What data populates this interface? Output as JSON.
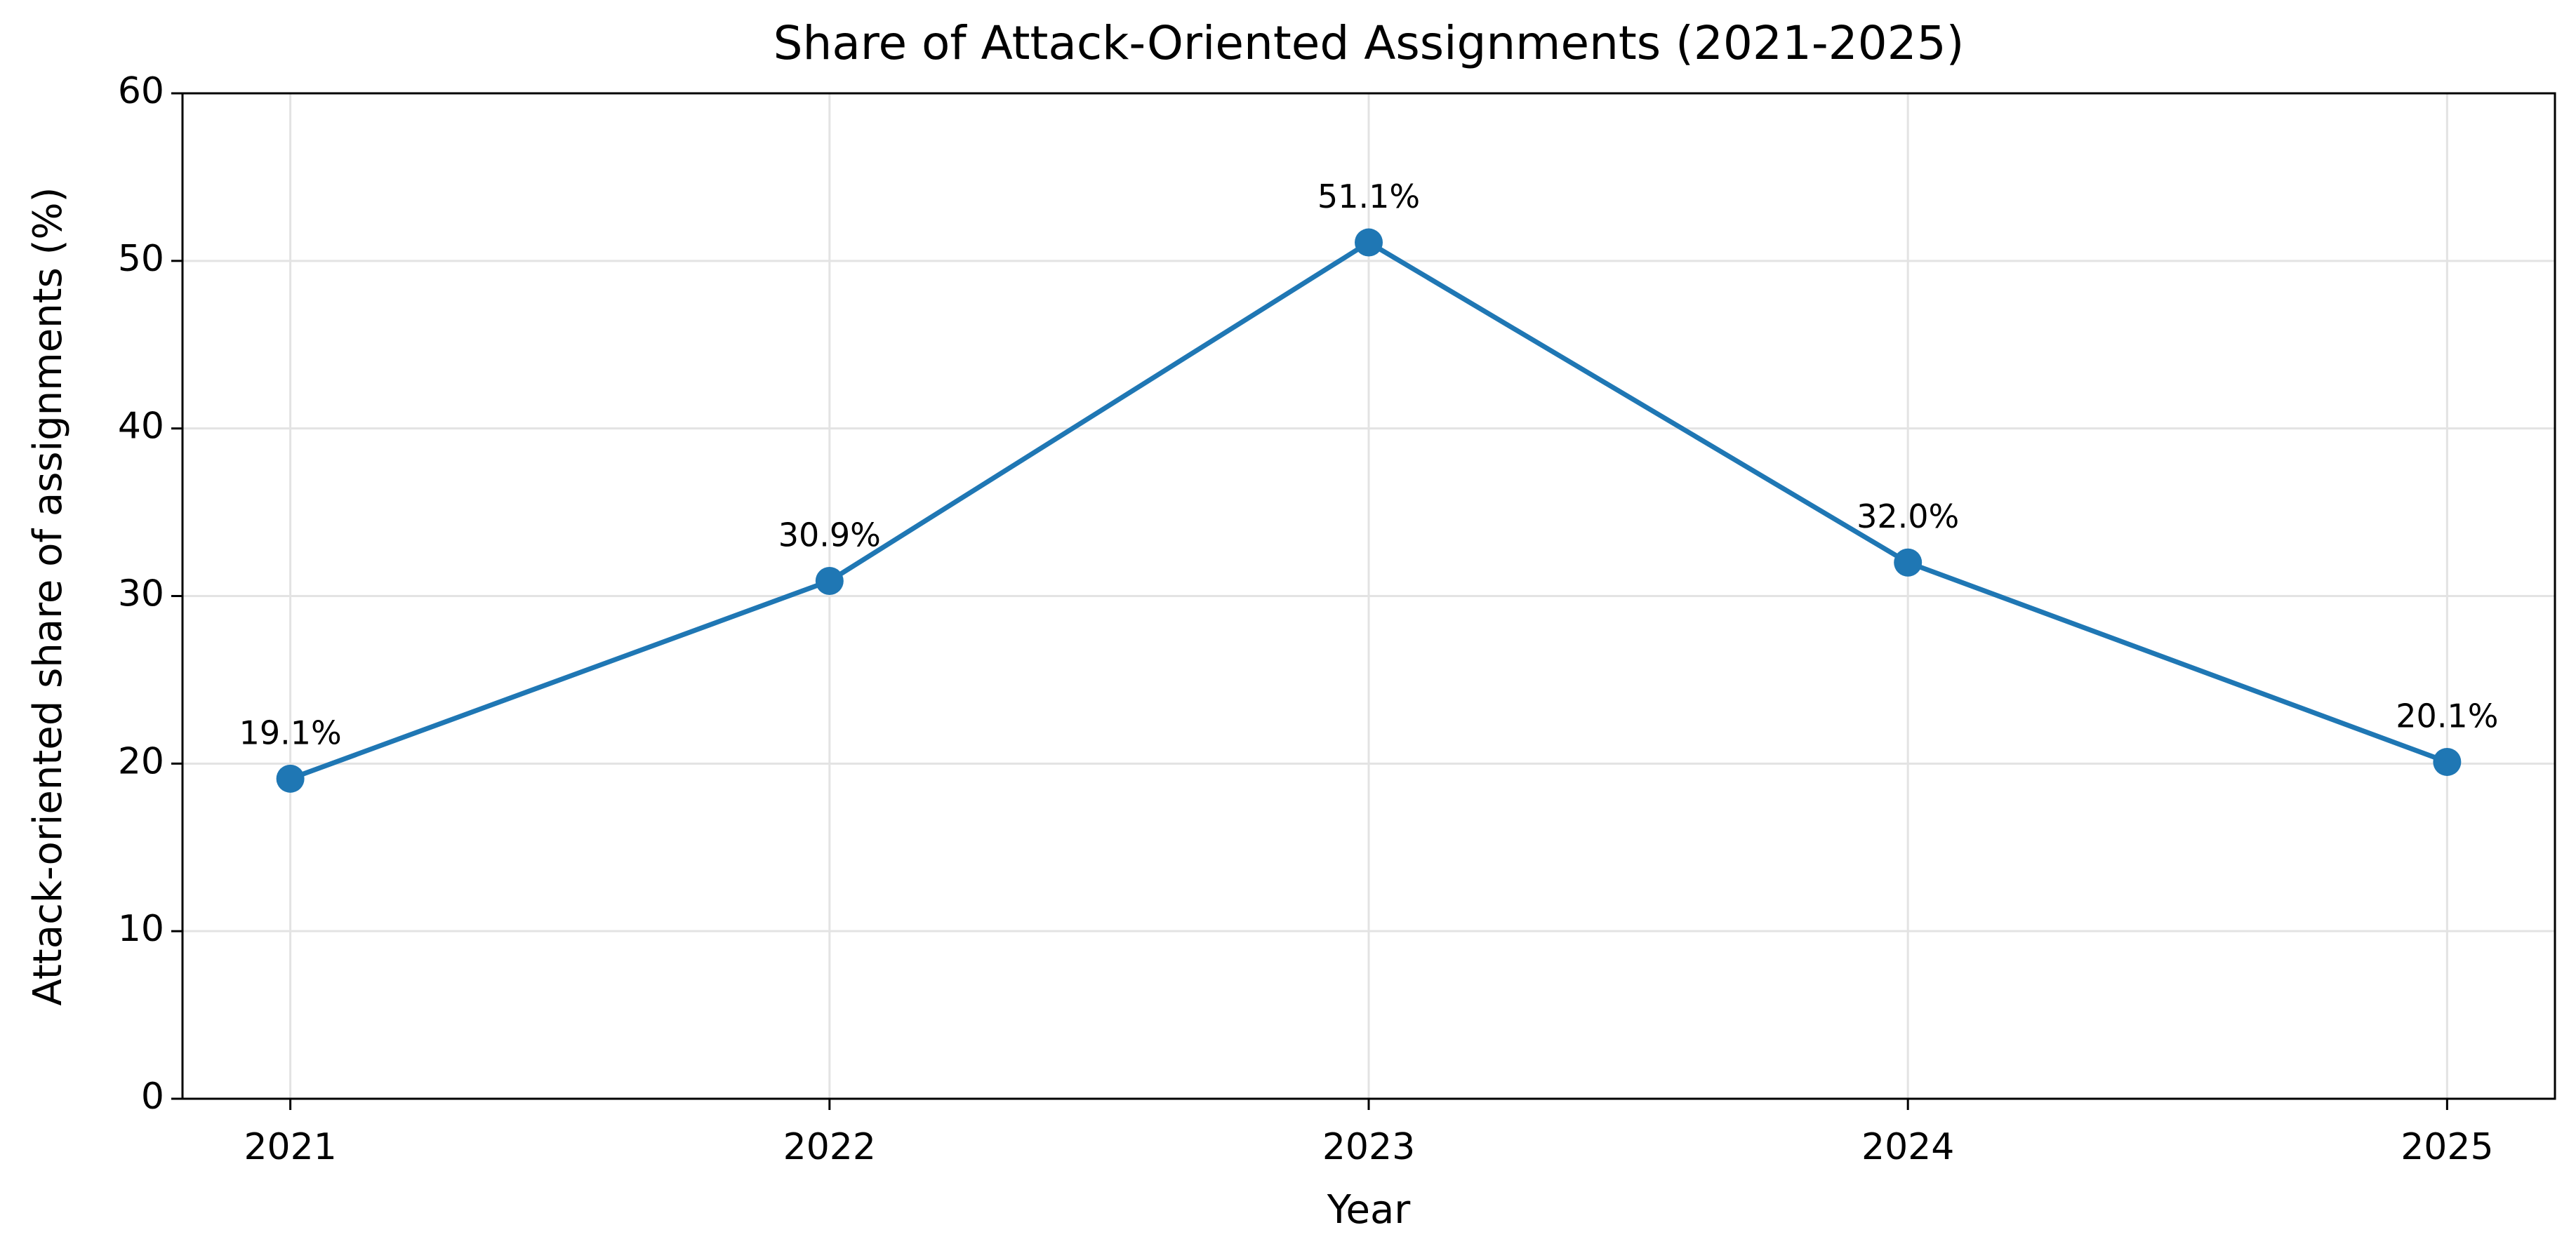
{
  "chart_data": {
    "type": "line",
    "title": "Share of Attack-Oriented Assignments (2021-2025)",
    "xlabel": "Year",
    "ylabel": "Attack-oriented share of assignments (%)",
    "x": [
      2021,
      2022,
      2023,
      2024,
      2025
    ],
    "values": [
      19.1,
      30.9,
      51.1,
      32.0,
      20.1
    ],
    "value_labels": [
      "19.1%",
      "30.9%",
      "51.1%",
      "32.0%",
      "20.1%"
    ],
    "color": "#1f77b4",
    "xlim": [
      2020.8,
      2025.2
    ],
    "xticks": [
      2021,
      2022,
      2023,
      2024,
      2025
    ],
    "ylim": [
      0,
      60
    ],
    "yticks": [
      0,
      10,
      20,
      30,
      40,
      50,
      60
    ],
    "grid": true
  }
}
